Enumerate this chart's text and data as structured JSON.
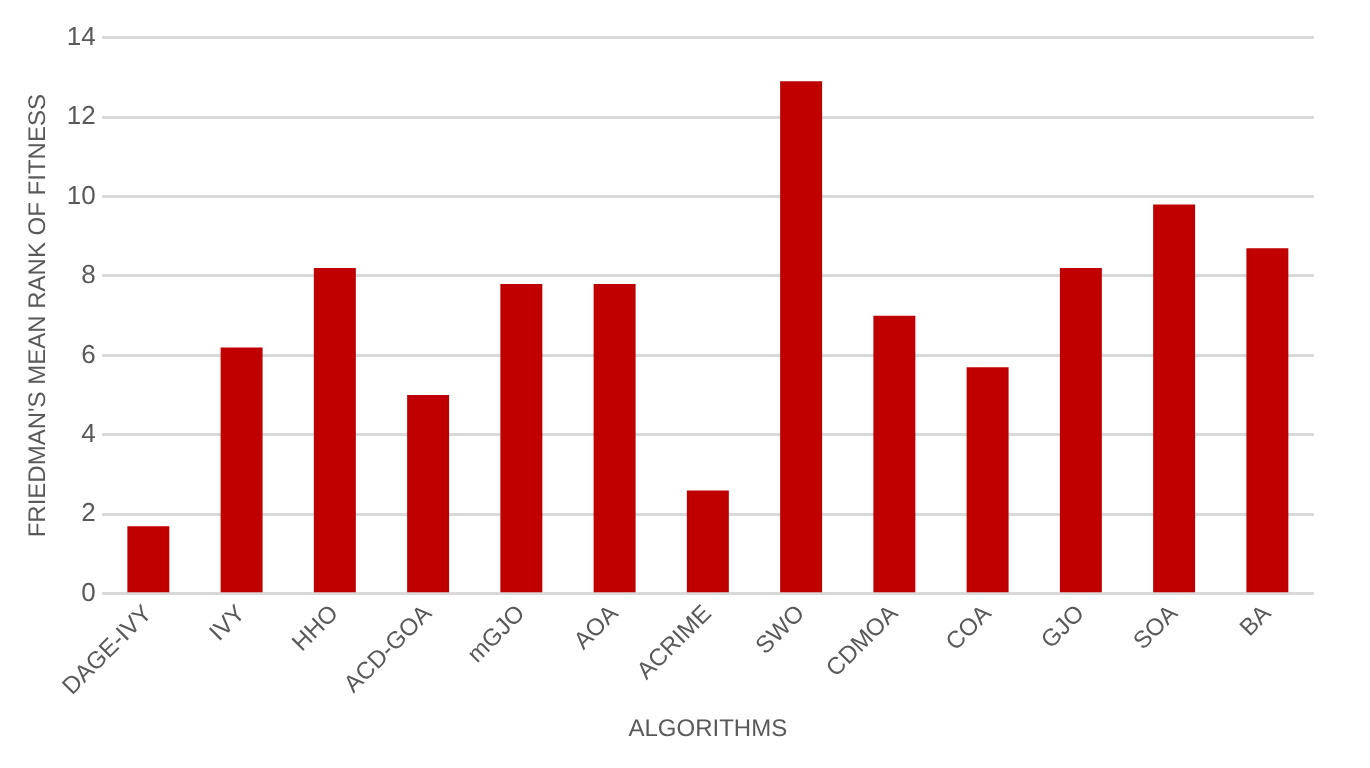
{
  "chart_data": {
    "type": "bar",
    "xlabel": "ALGORITHMS",
    "ylabel": "FRIEDMAN'S MEAN RANK OF FITNESS",
    "categories": [
      "DAGE-IVY",
      "IVY",
      "HHO",
      "ACD-GOA",
      "mGJO",
      "AOA",
      "ACRIME",
      "SWO",
      "CDMOA",
      "COA",
      "GJO",
      "SOA",
      "BA"
    ],
    "values": [
      1.7,
      6.2,
      8.2,
      5.0,
      7.8,
      7.8,
      2.6,
      12.9,
      7.0,
      5.7,
      8.2,
      9.8,
      8.7
    ],
    "color": "#c00000",
    "ylim": [
      0,
      14
    ],
    "yticks": [
      0,
      2,
      4,
      6,
      8,
      10,
      12,
      14
    ],
    "grid": "y"
  }
}
